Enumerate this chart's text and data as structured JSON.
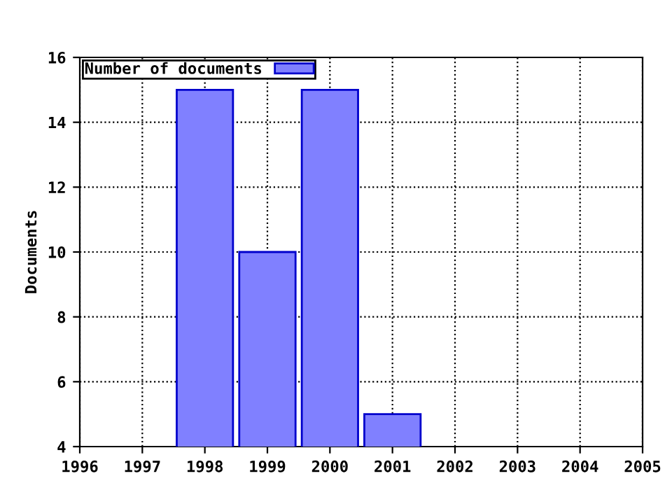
{
  "chart_data": {
    "type": "bar",
    "ylabel": "Documents",
    "x": [
      1998,
      1999,
      2000,
      2001
    ],
    "series": [
      {
        "name": "Number of documents",
        "color": "#8080ff",
        "values": [
          15,
          10,
          15,
          5
        ]
      }
    ],
    "xlim": [
      1996,
      2005
    ],
    "xticks": [
      1996,
      1997,
      1998,
      1999,
      2000,
      2001,
      2002,
      2003,
      2004,
      2005
    ],
    "ylim": [
      4,
      16
    ],
    "yticks": [
      4,
      6,
      8,
      10,
      12,
      14,
      16
    ],
    "grid": true,
    "legend": "top left"
  }
}
